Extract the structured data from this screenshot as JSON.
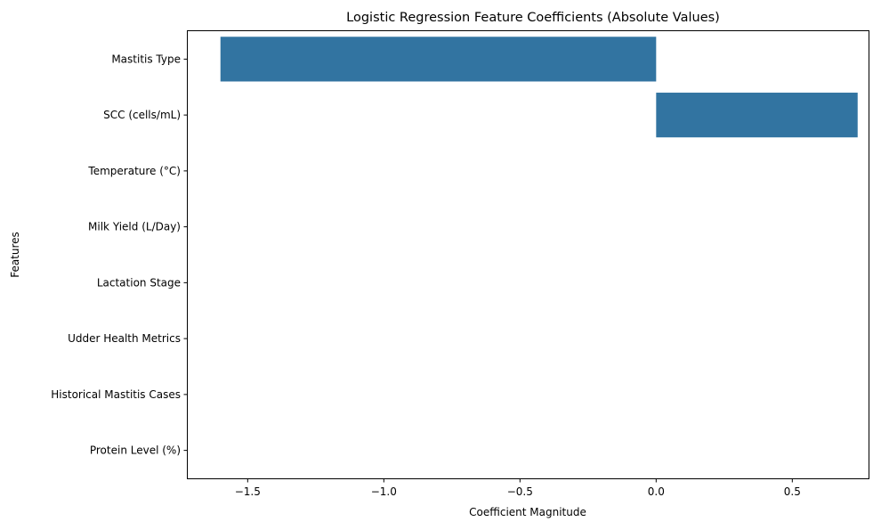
{
  "chart_data": {
    "type": "bar",
    "orientation": "horizontal",
    "title": "Logistic Regression Feature Coefficients (Absolute Values)",
    "xlabel": "Coefficient Magnitude",
    "ylabel": "Features",
    "categories": [
      "Mastitis Type",
      "SCC (cells/mL)",
      "Temperature (°C)",
      "Milk Yield (L/Day)",
      "Lactation Stage",
      "Udder Health Metrics",
      "Historical Mastitis Cases",
      "Protein Level (%)"
    ],
    "values": [
      -1.6,
      0.74,
      0,
      0,
      0,
      0,
      0,
      0
    ],
    "xlim": [
      -1.72,
      0.78
    ],
    "xticks": [
      -1.5,
      -1.0,
      -0.5,
      0.0,
      0.5
    ],
    "xtick_labels": [
      "−1.5",
      "−1.0",
      "−0.5",
      "0.0",
      "0.5"
    ],
    "grid": false,
    "bar_color": "#3274a1"
  }
}
